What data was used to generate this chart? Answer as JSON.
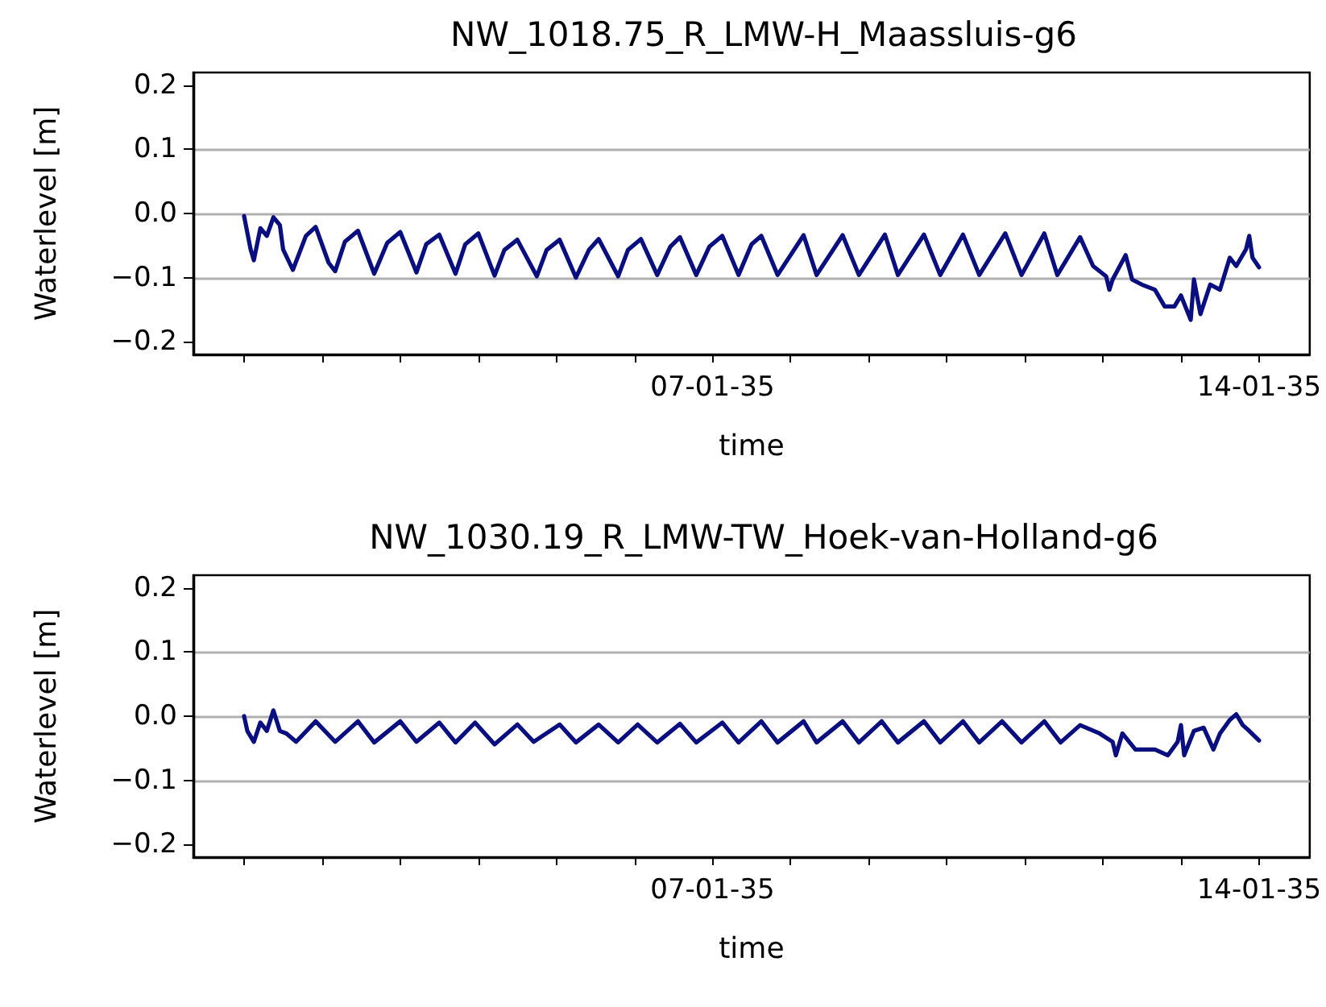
{
  "chart_data": [
    {
      "type": "line",
      "title": "NW_1018.75_R_LMW-H_Maassluis-g6",
      "xlabel": "time",
      "ylabel": "Waterlevel [m]",
      "grid": "y",
      "xlim": [
        "2034-12-31T08:24",
        "2035-01-14T15:36"
      ],
      "xticks": [
        {
          "value": "2035-01-01",
          "label": null
        },
        {
          "value": "2035-01-02",
          "label": null
        },
        {
          "value": "2035-01-03",
          "label": null
        },
        {
          "value": "2035-01-04",
          "label": null
        },
        {
          "value": "2035-01-05",
          "label": null
        },
        {
          "value": "2035-01-06",
          "label": null
        },
        {
          "value": "2035-01-07",
          "label": "07-01-35"
        },
        {
          "value": "2035-01-08",
          "label": null
        },
        {
          "value": "2035-01-09",
          "label": null
        },
        {
          "value": "2035-01-10",
          "label": null
        },
        {
          "value": "2035-01-11",
          "label": null
        },
        {
          "value": "2035-01-12",
          "label": null
        },
        {
          "value": "2035-01-13",
          "label": null
        },
        {
          "value": "2035-01-14",
          "label": "14-01-35"
        }
      ],
      "ylim": [
        -0.22,
        0.22
      ],
      "yticks": [
        {
          "value": -0.2,
          "label": "−0.2"
        },
        {
          "value": -0.1,
          "label": "−0.1"
        },
        {
          "value": 0,
          "label": "0.0"
        },
        {
          "value": 0.1,
          "label": "0.1"
        },
        {
          "value": 0.2,
          "label": "0.2"
        }
      ],
      "x": [
        "2035-01-01T00:00",
        "2035-01-01T02:00",
        "2035-01-01T03:00",
        "2035-01-01T05:00",
        "2035-01-01T07:00",
        "2035-01-01T09:00",
        "2035-01-01T11:00",
        "2035-01-01T12:00",
        "2035-01-01T15:00",
        "2035-01-01T19:00",
        "2035-01-01T22:00",
        "2035-01-02T02:00",
        "2035-01-02T04:00",
        "2035-01-02T07:00",
        "2035-01-02T11:00",
        "2035-01-02T16:00",
        "2035-01-02T20:00",
        "2035-01-03T00:00",
        "2035-01-03T05:00",
        "2035-01-03T08:00",
        "2035-01-03T12:00",
        "2035-01-03T17:00",
        "2035-01-03T20:00",
        "2035-01-04T00:00",
        "2035-01-04T05:00",
        "2035-01-04T08:00",
        "2035-01-04T12:00",
        "2035-01-04T18:00",
        "2035-01-04T21:00",
        "2035-01-05T01:00",
        "2035-01-05T06:00",
        "2035-01-05T10:00",
        "2035-01-05T13:00",
        "2035-01-05T19:00",
        "2035-01-05T22:00",
        "2035-01-06T02:00",
        "2035-01-06T07:00",
        "2035-01-06T11:00",
        "2035-01-06T14:00",
        "2035-01-06T19:00",
        "2035-01-06T23:00",
        "2035-01-07T03:00",
        "2035-01-07T08:00",
        "2035-01-07T12:00",
        "2035-01-07T15:00",
        "2035-01-07T20:00",
        "2035-01-08T04:00",
        "2035-01-08T08:00",
        "2035-01-08T16:00",
        "2035-01-08T21:00",
        "2035-01-09T05:00",
        "2035-01-09T09:00",
        "2035-01-09T17:00",
        "2035-01-09T22:00",
        "2035-01-10T05:00",
        "2035-01-10T10:00",
        "2035-01-10T18:00",
        "2035-01-10T23:00",
        "2035-01-11T06:00",
        "2035-01-11T10:00",
        "2035-01-11T17:00",
        "2035-01-11T21:00",
        "2035-01-12T01:00",
        "2035-01-12T02:00",
        "2035-01-12T03:00",
        "2035-01-12T07:00",
        "2035-01-12T09:00",
        "2035-01-12T12:00",
        "2035-01-12T16:00",
        "2035-01-12T19:00",
        "2035-01-12T22:00",
        "2035-01-13T00:00",
        "2035-01-13T03:00",
        "2035-01-13T04:00",
        "2035-01-13T06:00",
        "2035-01-13T09:00",
        "2035-01-13T12:00",
        "2035-01-13T15:00",
        "2035-01-13T17:00",
        "2035-01-13T20:00",
        "2035-01-13T21:00",
        "2035-01-13T22:00",
        "2035-01-14T00:00"
      ],
      "series": [
        {
          "color": "#0a0f80",
          "values": [
            -0.004,
            -0.056,
            -0.073,
            -0.023,
            -0.035,
            -0.006,
            -0.018,
            -0.056,
            -0.088,
            -0.035,
            -0.021,
            -0.077,
            -0.09,
            -0.044,
            -0.027,
            -0.094,
            -0.046,
            -0.029,
            -0.092,
            -0.048,
            -0.033,
            -0.094,
            -0.048,
            -0.031,
            -0.097,
            -0.057,
            -0.041,
            -0.098,
            -0.057,
            -0.041,
            -0.1,
            -0.057,
            -0.04,
            -0.098,
            -0.057,
            -0.04,
            -0.096,
            -0.052,
            -0.037,
            -0.096,
            -0.052,
            -0.035,
            -0.096,
            -0.048,
            -0.035,
            -0.096,
            -0.034,
            -0.096,
            -0.034,
            -0.096,
            -0.033,
            -0.096,
            -0.033,
            -0.096,
            -0.033,
            -0.096,
            -0.031,
            -0.096,
            -0.031,
            -0.096,
            -0.037,
            -0.082,
            -0.098,
            -0.119,
            -0.103,
            -0.065,
            -0.103,
            -0.111,
            -0.119,
            -0.145,
            -0.145,
            -0.128,
            -0.166,
            -0.103,
            -0.157,
            -0.111,
            -0.119,
            -0.069,
            -0.082,
            -0.056,
            -0.035,
            -0.069,
            -0.084
          ]
        }
      ]
    },
    {
      "type": "line",
      "title": "NW_1030.19_R_LMW-TW_Hoek-van-Holland-g6",
      "xlabel": "time",
      "ylabel": "Waterlevel [m]",
      "grid": "y",
      "xlim": [
        "2034-12-31T08:24",
        "2035-01-14T15:36"
      ],
      "xticks": [
        {
          "value": "2035-01-01",
          "label": null
        },
        {
          "value": "2035-01-02",
          "label": null
        },
        {
          "value": "2035-01-03",
          "label": null
        },
        {
          "value": "2035-01-04",
          "label": null
        },
        {
          "value": "2035-01-05",
          "label": null
        },
        {
          "value": "2035-01-06",
          "label": null
        },
        {
          "value": "2035-01-07",
          "label": "07-01-35"
        },
        {
          "value": "2035-01-08",
          "label": null
        },
        {
          "value": "2035-01-09",
          "label": null
        },
        {
          "value": "2035-01-10",
          "label": null
        },
        {
          "value": "2035-01-11",
          "label": null
        },
        {
          "value": "2035-01-12",
          "label": null
        },
        {
          "value": "2035-01-13",
          "label": null
        },
        {
          "value": "2035-01-14",
          "label": "14-01-35"
        }
      ],
      "ylim": [
        -0.22,
        0.22
      ],
      "yticks": [
        {
          "value": -0.2,
          "label": "−0.2"
        },
        {
          "value": -0.1,
          "label": "−0.1"
        },
        {
          "value": 0,
          "label": "0.0"
        },
        {
          "value": 0.1,
          "label": "0.1"
        },
        {
          "value": 0.2,
          "label": "0.2"
        }
      ],
      "x": [
        "2035-01-01T00:00",
        "2035-01-01T01:00",
        "2035-01-01T03:00",
        "2035-01-01T05:00",
        "2035-01-01T07:00",
        "2035-01-01T09:00",
        "2035-01-01T11:00",
        "2035-01-01T13:00",
        "2035-01-01T16:00",
        "2035-01-01T22:00",
        "2035-01-02T04:00",
        "2035-01-02T11:00",
        "2035-01-02T16:00",
        "2035-01-03T00:00",
        "2035-01-03T05:00",
        "2035-01-03T12:00",
        "2035-01-03T17:00",
        "2035-01-03T23:00",
        "2035-01-04T05:00",
        "2035-01-04T12:00",
        "2035-01-04T17:00",
        "2035-01-05T01:00",
        "2035-01-05T06:00",
        "2035-01-05T13:00",
        "2035-01-05T19:00",
        "2035-01-06T01:00",
        "2035-01-06T07:00",
        "2035-01-06T14:00",
        "2035-01-06T19:00",
        "2035-01-07T03:00",
        "2035-01-07T08:00",
        "2035-01-07T15:00",
        "2035-01-07T20:00",
        "2035-01-08T04:00",
        "2035-01-08T08:00",
        "2035-01-08T16:00",
        "2035-01-08T21:00",
        "2035-01-09T04:00",
        "2035-01-09T09:00",
        "2035-01-09T17:00",
        "2035-01-09T22:00",
        "2035-01-10T05:00",
        "2035-01-10T10:00",
        "2035-01-10T17:00",
        "2035-01-10T23:00",
        "2035-01-11T06:00",
        "2035-01-11T11:00",
        "2035-01-11T17:00",
        "2035-01-11T23:00",
        "2035-01-12T03:00",
        "2035-01-12T04:00",
        "2035-01-12T06:00",
        "2035-01-12T10:00",
        "2035-01-12T16:00",
        "2035-01-12T20:00",
        "2035-01-12T23:00",
        "2035-01-13T00:00",
        "2035-01-13T01:00",
        "2035-01-13T04:00",
        "2035-01-13T07:00",
        "2035-01-13T10:00",
        "2035-01-13T12:00",
        "2035-01-13T15:00",
        "2035-01-13T17:00",
        "2035-01-13T19:00",
        "2035-01-13T21:00",
        "2035-01-14T00:00"
      ],
      "series": [
        {
          "color": "#0a0f80",
          "values": [
            0.0,
            -0.023,
            -0.04,
            -0.01,
            -0.023,
            0.009,
            -0.023,
            -0.027,
            -0.04,
            -0.008,
            -0.04,
            -0.008,
            -0.041,
            -0.008,
            -0.04,
            -0.01,
            -0.041,
            -0.01,
            -0.044,
            -0.013,
            -0.04,
            -0.013,
            -0.041,
            -0.013,
            -0.041,
            -0.013,
            -0.041,
            -0.012,
            -0.041,
            -0.01,
            -0.041,
            -0.008,
            -0.041,
            -0.008,
            -0.041,
            -0.008,
            -0.041,
            -0.008,
            -0.041,
            -0.008,
            -0.041,
            -0.008,
            -0.041,
            -0.008,
            -0.041,
            -0.008,
            -0.041,
            -0.014,
            -0.027,
            -0.04,
            -0.061,
            -0.027,
            -0.052,
            -0.052,
            -0.061,
            -0.04,
            -0.014,
            -0.061,
            -0.023,
            -0.018,
            -0.052,
            -0.027,
            -0.006,
            0.003,
            -0.014,
            -0.023,
            -0.038
          ]
        }
      ]
    }
  ]
}
